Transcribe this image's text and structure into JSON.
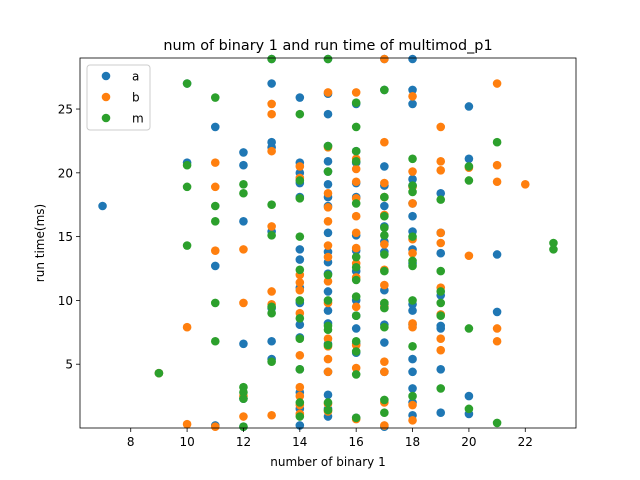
{
  "chart_data": {
    "type": "scatter",
    "title": "num of binary 1 and run time of multimod_p1",
    "xlabel": "number of binary 1",
    "ylabel": "run time(ms)",
    "xlim": [
      6.2,
      23.8
    ],
    "ylim": [
      0,
      29
    ],
    "xticks": [
      8,
      10,
      12,
      14,
      16,
      18,
      20,
      22
    ],
    "yticks": [
      5,
      10,
      15,
      20,
      25
    ],
    "grid": false,
    "legend_position": "top-left",
    "series": [
      {
        "name": "a",
        "color": "#1f77b4",
        "points": [
          [
            7,
            17.4
          ],
          [
            9,
            4.3
          ],
          [
            10,
            27.0
          ],
          [
            10,
            20.8
          ],
          [
            11,
            23.6
          ],
          [
            11,
            12.7
          ],
          [
            11,
            0.2
          ],
          [
            12,
            21.6
          ],
          [
            12,
            20.6
          ],
          [
            12,
            16.2
          ],
          [
            12,
            6.6
          ],
          [
            12,
            2.3
          ],
          [
            12,
            0.1
          ],
          [
            13,
            29.0
          ],
          [
            13,
            27.0
          ],
          [
            13,
            22.4
          ],
          [
            13,
            22.0
          ],
          [
            13,
            15.4
          ],
          [
            13,
            9.4
          ],
          [
            13,
            6.8
          ],
          [
            13,
            5.4
          ],
          [
            14,
            25.9
          ],
          [
            14,
            20.8
          ],
          [
            14,
            20.0
          ],
          [
            14,
            19.2
          ],
          [
            14,
            18.1
          ],
          [
            14,
            14.0
          ],
          [
            14,
            13.2
          ],
          [
            14,
            11.0
          ],
          [
            14,
            9.8
          ],
          [
            14,
            8.1
          ],
          [
            14,
            7.1
          ],
          [
            14,
            4.6
          ],
          [
            14,
            2.8
          ],
          [
            14,
            1.5
          ],
          [
            14,
            0.2
          ],
          [
            15,
            29.0
          ],
          [
            15,
            26.2
          ],
          [
            15,
            24.6
          ],
          [
            15,
            22.1
          ],
          [
            15,
            20.9
          ],
          [
            15,
            20.1
          ],
          [
            15,
            19.1
          ],
          [
            15,
            18.1
          ],
          [
            15,
            17.4
          ],
          [
            15,
            15.3
          ],
          [
            15,
            13.8
          ],
          [
            15,
            13.0
          ],
          [
            15,
            12.1
          ],
          [
            15,
            10.7
          ],
          [
            15,
            9.2
          ],
          [
            15,
            8.2
          ],
          [
            15,
            6.6
          ],
          [
            15,
            4.4
          ],
          [
            15,
            2.6
          ],
          [
            15,
            1.5
          ],
          [
            15,
            0.9
          ],
          [
            16,
            25.4
          ],
          [
            16,
            21.7
          ],
          [
            16,
            20.8
          ],
          [
            16,
            19.2
          ],
          [
            16,
            18.1
          ],
          [
            16,
            15.1
          ],
          [
            16,
            13.9
          ],
          [
            16,
            12.3
          ],
          [
            16,
            10.0
          ],
          [
            16,
            8.8
          ],
          [
            16,
            7.8
          ],
          [
            16,
            6.6
          ],
          [
            16,
            5.9
          ],
          [
            16,
            0.8
          ],
          [
            17,
            29.0
          ],
          [
            17,
            26.5
          ],
          [
            17,
            20.5
          ],
          [
            17,
            19.0
          ],
          [
            17,
            17.4
          ],
          [
            17,
            15.8
          ],
          [
            17,
            14.6
          ],
          [
            17,
            13.8
          ],
          [
            17,
            10.8
          ],
          [
            17,
            9.7
          ],
          [
            17,
            8.1
          ],
          [
            17,
            6.7
          ],
          [
            17,
            4.4
          ],
          [
            17,
            0.1
          ],
          [
            18,
            29.0
          ],
          [
            18,
            26.5
          ],
          [
            18,
            25.4
          ],
          [
            18,
            19.5
          ],
          [
            18,
            19.0
          ],
          [
            18,
            17.6
          ],
          [
            18,
            16.6
          ],
          [
            18,
            15.4
          ],
          [
            18,
            14.0
          ],
          [
            18,
            12.9
          ],
          [
            18,
            9.7
          ],
          [
            18,
            9.2
          ],
          [
            18,
            8.1
          ],
          [
            18,
            5.4
          ],
          [
            18,
            4.4
          ],
          [
            18,
            3.1
          ],
          [
            18,
            2.0
          ],
          [
            18,
            1.0
          ],
          [
            19,
            18.4
          ],
          [
            19,
            15.3
          ],
          [
            19,
            13.7
          ],
          [
            19,
            10.4
          ],
          [
            19,
            8.0
          ],
          [
            19,
            7.8
          ],
          [
            19,
            4.6
          ],
          [
            19,
            1.2
          ],
          [
            20,
            25.2
          ],
          [
            20,
            21.1
          ],
          [
            20,
            2.5
          ],
          [
            20,
            1.1
          ],
          [
            21,
            13.6
          ],
          [
            21,
            9.1
          ]
        ]
      },
      {
        "name": "b",
        "color": "#ff7f0e",
        "points": [
          [
            9,
            4.3
          ],
          [
            10,
            7.9
          ],
          [
            10,
            0.3
          ],
          [
            11,
            20.8
          ],
          [
            11,
            18.9
          ],
          [
            11,
            13.9
          ],
          [
            11,
            0.1
          ],
          [
            12,
            14.0
          ],
          [
            12,
            9.8
          ],
          [
            12,
            2.5
          ],
          [
            12,
            0.9
          ],
          [
            13,
            25.4
          ],
          [
            13,
            24.6
          ],
          [
            13,
            21.7
          ],
          [
            13,
            15.8
          ],
          [
            13,
            10.7
          ],
          [
            13,
            9.7
          ],
          [
            13,
            1.0
          ],
          [
            14,
            20.5
          ],
          [
            14,
            19.6
          ],
          [
            14,
            12.0
          ],
          [
            14,
            11.4
          ],
          [
            14,
            10.8
          ],
          [
            14,
            9.0
          ],
          [
            14,
            5.7
          ],
          [
            14,
            3.2
          ],
          [
            14,
            2.5
          ],
          [
            14,
            1.8
          ],
          [
            14,
            1.1
          ],
          [
            15,
            26.3
          ],
          [
            15,
            22.0
          ],
          [
            15,
            18.4
          ],
          [
            15,
            17.3
          ],
          [
            15,
            16.2
          ],
          [
            15,
            14.3
          ],
          [
            15,
            13.4
          ],
          [
            15,
            11.5
          ],
          [
            15,
            9.8
          ],
          [
            15,
            7.0
          ],
          [
            15,
            6.4
          ],
          [
            15,
            5.4
          ],
          [
            15,
            4.4
          ],
          [
            15,
            1.9
          ],
          [
            15,
            1.3
          ],
          [
            16,
            26.3
          ],
          [
            16,
            21.1
          ],
          [
            16,
            20.3
          ],
          [
            16,
            19.3
          ],
          [
            16,
            18.0
          ],
          [
            16,
            16.6
          ],
          [
            16,
            15.3
          ],
          [
            16,
            14.1
          ],
          [
            16,
            12.9
          ],
          [
            16,
            11.8
          ],
          [
            16,
            9.5
          ],
          [
            16,
            6.5
          ],
          [
            16,
            4.7
          ],
          [
            16,
            0.7
          ],
          [
            17,
            29.0
          ],
          [
            17,
            22.4
          ],
          [
            17,
            19.2
          ],
          [
            17,
            18.1
          ],
          [
            17,
            16.7
          ],
          [
            17,
            14.4
          ],
          [
            17,
            12.4
          ],
          [
            17,
            11.2
          ],
          [
            17,
            9.5
          ],
          [
            17,
            5.2
          ],
          [
            17,
            4.4
          ],
          [
            17,
            2.0
          ],
          [
            17,
            0.2
          ],
          [
            18,
            26.0
          ],
          [
            18,
            20.1
          ],
          [
            18,
            18.9
          ],
          [
            18,
            17.6
          ],
          [
            18,
            14.8
          ],
          [
            18,
            13.7
          ],
          [
            18,
            8.2
          ],
          [
            18,
            7.9
          ],
          [
            18,
            1.8
          ],
          [
            18,
            0.6
          ],
          [
            19,
            23.6
          ],
          [
            19,
            20.9
          ],
          [
            19,
            20.2
          ],
          [
            19,
            15.3
          ],
          [
            19,
            14.5
          ],
          [
            19,
            11.0
          ],
          [
            19,
            8.9
          ],
          [
            19,
            7.0
          ],
          [
            19,
            6.1
          ],
          [
            20,
            20.4
          ],
          [
            20,
            13.5
          ],
          [
            21,
            27.0
          ],
          [
            21,
            20.6
          ],
          [
            21,
            19.3
          ],
          [
            21,
            7.8
          ],
          [
            21,
            6.8
          ],
          [
            22,
            19.1
          ]
        ]
      },
      {
        "name": "m",
        "color": "#2ca02c",
        "points": [
          [
            9,
            4.3
          ],
          [
            10,
            27.0
          ],
          [
            10,
            20.6
          ],
          [
            10,
            18.9
          ],
          [
            10,
            14.3
          ],
          [
            11,
            25.9
          ],
          [
            11,
            17.4
          ],
          [
            11,
            16.2
          ],
          [
            11,
            9.8
          ],
          [
            11,
            6.8
          ],
          [
            12,
            19.1
          ],
          [
            12,
            18.4
          ],
          [
            12,
            3.2
          ],
          [
            12,
            2.8
          ],
          [
            12,
            2.3
          ],
          [
            12,
            0.1
          ],
          [
            13,
            29.0
          ],
          [
            13,
            17.5
          ],
          [
            13,
            15.1
          ],
          [
            13,
            9.5
          ],
          [
            13,
            9.0
          ],
          [
            13,
            5.2
          ],
          [
            14,
            24.6
          ],
          [
            14,
            19.4
          ],
          [
            14,
            18.0
          ],
          [
            14,
            15.0
          ],
          [
            14,
            12.4
          ],
          [
            14,
            10.0
          ],
          [
            14,
            8.6
          ],
          [
            14,
            7.0
          ],
          [
            14,
            4.6
          ],
          [
            14,
            2.0
          ],
          [
            14,
            0.9
          ],
          [
            15,
            29.0
          ],
          [
            15,
            22.1
          ],
          [
            15,
            20.1
          ],
          [
            15,
            12.0
          ],
          [
            15,
            10.0
          ],
          [
            15,
            8.0
          ],
          [
            15,
            7.7
          ],
          [
            15,
            6.5
          ],
          [
            15,
            2.0
          ],
          [
            15,
            1.4
          ],
          [
            16,
            25.5
          ],
          [
            16,
            23.6
          ],
          [
            16,
            21.7
          ],
          [
            16,
            20.9
          ],
          [
            16,
            17.6
          ],
          [
            16,
            13.4
          ],
          [
            16,
            12.6
          ],
          [
            16,
            11.6
          ],
          [
            16,
            10.3
          ],
          [
            16,
            8.8
          ],
          [
            16,
            6.8
          ],
          [
            16,
            6.0
          ],
          [
            16,
            4.2
          ],
          [
            16,
            0.8
          ],
          [
            17,
            26.5
          ],
          [
            17,
            18.1
          ],
          [
            17,
            16.6
          ],
          [
            17,
            15.7
          ],
          [
            17,
            15.1
          ],
          [
            17,
            13.6
          ],
          [
            17,
            12.3
          ],
          [
            17,
            9.8
          ],
          [
            17,
            9.4
          ],
          [
            17,
            7.9
          ],
          [
            17,
            2.2
          ],
          [
            17,
            1.2
          ],
          [
            18,
            21.1
          ],
          [
            18,
            19.0
          ],
          [
            18,
            18.5
          ],
          [
            18,
            15.0
          ],
          [
            18,
            13.1
          ],
          [
            18,
            12.7
          ],
          [
            18,
            10.0
          ],
          [
            18,
            6.4
          ],
          [
            18,
            2.5
          ],
          [
            19,
            17.9
          ],
          [
            19,
            12.3
          ],
          [
            19,
            10.7
          ],
          [
            19,
            9.8
          ],
          [
            19,
            8.8
          ],
          [
            19,
            3.1
          ],
          [
            20,
            20.5
          ],
          [
            20,
            19.4
          ],
          [
            20,
            7.8
          ],
          [
            20,
            1.5
          ],
          [
            21,
            22.4
          ],
          [
            21,
            0.4
          ],
          [
            23,
            14.5
          ],
          [
            23,
            14.0
          ]
        ]
      }
    ]
  }
}
